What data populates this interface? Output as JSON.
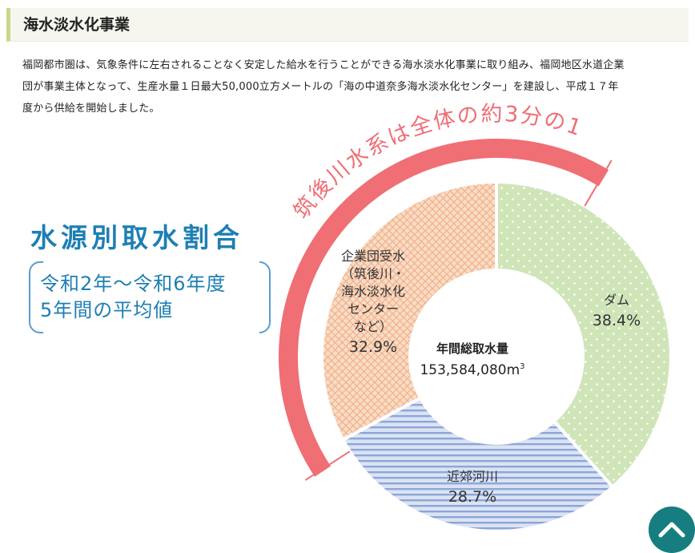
{
  "section": {
    "heading": "海水淡水化事業",
    "intro_lines": [
      "福岡都市圏は、気象条件に左右されることなく安定した給水を行うことができる海水淡水化事業に取り組み、福岡地区水道企業",
      "団が事業主体となって、生産水量１日最大50,000立方メートルの「海の中道奈多海水淡水化センター」を建設し、平成１７年",
      "度から供給を開始しました。"
    ]
  },
  "chart_data": {
    "type": "pie",
    "donut": true,
    "title": "水源別取水割合",
    "period_lines": [
      "令和2年～令和6年度",
      "5年間の平均値"
    ],
    "center_label": "年間総取水量",
    "center_value": "153,584,080m",
    "center_unit_superscript": "3",
    "arc_annotation": "筑後川水系は全体の約3分の1",
    "slices": [
      {
        "key": "dam",
        "label_lines": [
          "ダム"
        ],
        "percent_label": "38.4%",
        "value": 38.4,
        "color": "#cfe5b8",
        "pattern": "dots"
      },
      {
        "key": "river",
        "label_lines": [
          "近郊河川"
        ],
        "percent_label": "28.7%",
        "value": 28.7,
        "color": "#dbe3f3",
        "pattern": "stripes"
      },
      {
        "key": "corp",
        "label_lines": [
          "企業団受水",
          "（筑後川・",
          "海水淡水化",
          "センター",
          "など）"
        ],
        "percent_label": "32.9%",
        "value": 32.9,
        "color": "#f8dcc6",
        "pattern": "crosshatch"
      }
    ],
    "colors": {
      "arc": "#ef6f75",
      "title": "#1d7fb3",
      "dots": "#ffffff",
      "stripes": "#8ca6d8",
      "crosshatch": "#f2ad84",
      "text": "#333333"
    }
  },
  "back_to_top": {
    "icon": "chevron-up-icon",
    "color": "#167e80"
  }
}
